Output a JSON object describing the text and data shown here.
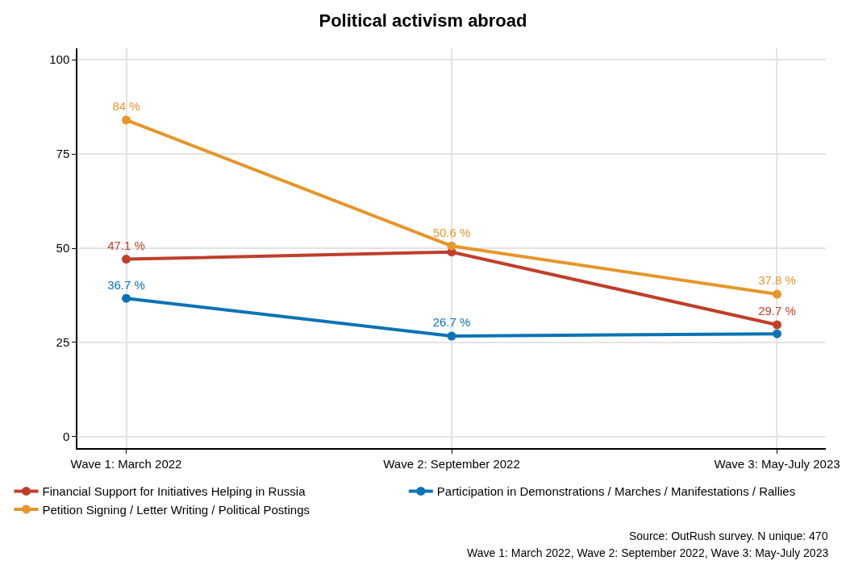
{
  "chart_data": {
    "type": "line",
    "title": "Political activism abroad",
    "categories": [
      "Wave 1: March 2022",
      "Wave 2: September 2022",
      "Wave 3: May-July 2023"
    ],
    "series": [
      {
        "name": "Financial Support for Initiatives Helping in Russia",
        "color": "#bf3f2b",
        "values": [
          47.1,
          49.0,
          29.7
        ],
        "value_labels": [
          "47.1 %",
          null,
          "29.7 %"
        ]
      },
      {
        "name": "Participation in Demonstrations / Marches / Manifestations / Rallies",
        "color": "#0b72b5",
        "values": [
          36.7,
          26.7,
          27.3
        ],
        "value_labels": [
          "36.7 %",
          "26.7 %",
          null
        ]
      },
      {
        "name": "Petition Signing / Letter Writing / Political Postings",
        "color": "#e5962c",
        "values": [
          84,
          50.6,
          37.8
        ],
        "value_labels": [
          "84 %",
          "50.6 %",
          "37.8 %"
        ]
      }
    ],
    "ylim": [
      -3,
      103
    ],
    "yticks": [
      0,
      25,
      50,
      75,
      100
    ],
    "grid": true,
    "legend": "bottom",
    "marker": "circle",
    "line_style": "solid",
    "annotations": [
      "Source: OutRush survey. N unique: 470",
      "Wave 1: March 2022, Wave 2: September 2022, Wave 3: May-July 2023"
    ]
  }
}
